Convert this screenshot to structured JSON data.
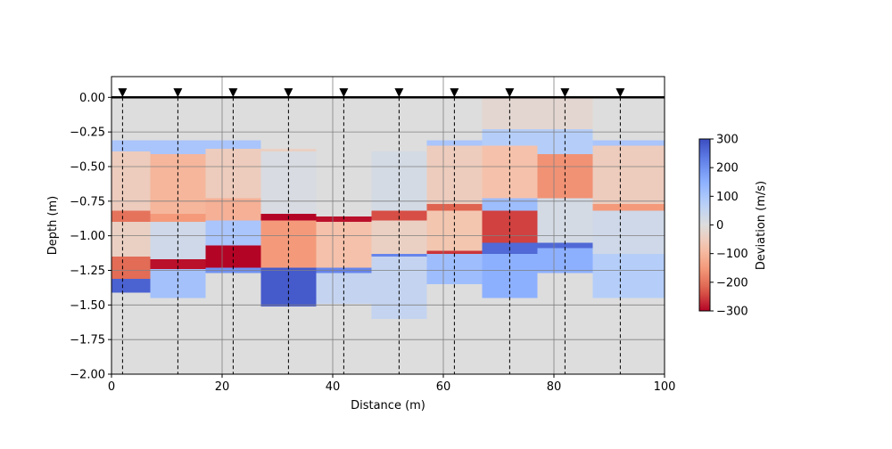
{
  "chart_data": {
    "type": "heatmap",
    "title": "",
    "xlabel": "Distance (m)",
    "ylabel": "Depth (m)",
    "xlim": [
      0,
      100
    ],
    "ylim": [
      -2.0,
      0.15
    ],
    "x_ticks": [
      0,
      20,
      40,
      60,
      80,
      100
    ],
    "x_tick_labels": [
      "0",
      "20",
      "40",
      "60",
      "80",
      "100"
    ],
    "y_ticks": [
      0.0,
      -0.25,
      -0.5,
      -0.75,
      -1.0,
      -1.25,
      -1.5,
      -1.75,
      -2.0
    ],
    "y_tick_labels": [
      "0.00",
      "−0.25",
      "−0.50",
      "−0.75",
      "−1.00",
      "−1.25",
      "−1.50",
      "−1.75",
      "−2.00"
    ],
    "grid": true,
    "colormap": "coolwarm_r",
    "colorbar": {
      "label": "Deviation (m/s)",
      "vmin": -300,
      "vmax": 300,
      "ticks": [
        300,
        200,
        100,
        0,
        -100,
        -200,
        -300
      ],
      "tick_labels": [
        "300",
        "200",
        "100",
        "0",
        "−100",
        "−200",
        "−300"
      ]
    },
    "surface_depth": 0,
    "receiver_positions": [
      2,
      12,
      22,
      32,
      42,
      52,
      62,
      72,
      82,
      92
    ],
    "receiver_marker": "▼",
    "columns": [
      {
        "x0": 0,
        "x1": 7,
        "layers": [
          {
            "top": 0.0,
            "bottom": -0.31,
            "value": 0
          },
          {
            "top": -0.31,
            "bottom": -0.39,
            "value": 100
          },
          {
            "top": -0.39,
            "bottom": -0.82,
            "value": -50
          },
          {
            "top": -0.82,
            "bottom": -0.9,
            "value": -200
          },
          {
            "top": -0.9,
            "bottom": -1.15,
            "value": -40
          },
          {
            "top": -1.15,
            "bottom": -1.31,
            "value": -210
          },
          {
            "top": -1.31,
            "bottom": -1.41,
            "value": 270
          },
          {
            "top": -1.41,
            "bottom": -2.0,
            "value": 0
          }
        ]
      },
      {
        "x0": 7,
        "x1": 17,
        "layers": [
          {
            "top": 0.0,
            "bottom": -0.31,
            "value": 0
          },
          {
            "top": -0.31,
            "bottom": -0.41,
            "value": 100
          },
          {
            "top": -0.41,
            "bottom": -0.84,
            "value": -100
          },
          {
            "top": -0.84,
            "bottom": -0.9,
            "value": -150
          },
          {
            "top": -0.9,
            "bottom": -1.17,
            "value": 30
          },
          {
            "top": -1.17,
            "bottom": -1.24,
            "value": -290
          },
          {
            "top": -1.24,
            "bottom": -1.45,
            "value": 110
          },
          {
            "top": -1.45,
            "bottom": -2.0,
            "value": 0
          }
        ]
      },
      {
        "x0": 17,
        "x1": 27,
        "layers": [
          {
            "top": 0.0,
            "bottom": -0.31,
            "value": 0
          },
          {
            "top": -0.31,
            "bottom": -0.37,
            "value": 100
          },
          {
            "top": -0.37,
            "bottom": -0.73,
            "value": -50
          },
          {
            "top": -0.73,
            "bottom": -0.89,
            "value": -110
          },
          {
            "top": -0.89,
            "bottom": -1.07,
            "value": 100
          },
          {
            "top": -1.07,
            "bottom": -1.23,
            "value": -300
          },
          {
            "top": -1.23,
            "bottom": -1.27,
            "value": 200
          },
          {
            "top": -1.27,
            "bottom": -2.0,
            "value": 0
          }
        ]
      },
      {
        "x0": 27,
        "x1": 37,
        "layers": [
          {
            "top": 0.0,
            "bottom": -0.37,
            "value": 0
          },
          {
            "top": -0.37,
            "bottom": -0.39,
            "value": -40
          },
          {
            "top": -0.39,
            "bottom": -0.84,
            "value": 10
          },
          {
            "top": -0.84,
            "bottom": -0.89,
            "value": -300
          },
          {
            "top": -0.89,
            "bottom": -1.23,
            "value": -150
          },
          {
            "top": -1.23,
            "bottom": -1.51,
            "value": 280
          },
          {
            "top": -1.51,
            "bottom": -2.0,
            "value": 0
          }
        ]
      },
      {
        "x0": 37,
        "x1": 47,
        "layers": [
          {
            "top": 0.0,
            "bottom": -0.86,
            "value": 0
          },
          {
            "top": -0.86,
            "bottom": -0.9,
            "value": -290
          },
          {
            "top": -0.9,
            "bottom": -1.23,
            "value": -80
          },
          {
            "top": -1.23,
            "bottom": -1.27,
            "value": 220
          },
          {
            "top": -1.27,
            "bottom": -1.49,
            "value": 50
          },
          {
            "top": -1.49,
            "bottom": -2.0,
            "value": 0
          }
        ]
      },
      {
        "x0": 47,
        "x1": 57,
        "layers": [
          {
            "top": 0.0,
            "bottom": -0.39,
            "value": 0
          },
          {
            "top": -0.39,
            "bottom": -0.82,
            "value": 20
          },
          {
            "top": -0.82,
            "bottom": -0.89,
            "value": -240
          },
          {
            "top": -0.89,
            "bottom": -1.13,
            "value": -40
          },
          {
            "top": -1.13,
            "bottom": -1.15,
            "value": 220
          },
          {
            "top": -1.15,
            "bottom": -1.6,
            "value": 50
          },
          {
            "top": -1.6,
            "bottom": -2.0,
            "value": 0
          }
        ]
      },
      {
        "x0": 57,
        "x1": 67,
        "layers": [
          {
            "top": 0.0,
            "bottom": -0.31,
            "value": 0
          },
          {
            "top": -0.31,
            "bottom": -0.35,
            "value": 100
          },
          {
            "top": -0.35,
            "bottom": -0.77,
            "value": -50
          },
          {
            "top": -0.77,
            "bottom": -0.82,
            "value": -220
          },
          {
            "top": -0.82,
            "bottom": -1.11,
            "value": -70
          },
          {
            "top": -1.11,
            "bottom": -1.13,
            "value": -260
          },
          {
            "top": -1.13,
            "bottom": -1.35,
            "value": 120
          },
          {
            "top": -1.35,
            "bottom": -2.0,
            "value": 0
          }
        ]
      },
      {
        "x0": 67,
        "x1": 77,
        "layers": [
          {
            "top": 0.0,
            "bottom": -0.23,
            "value": -20
          },
          {
            "top": -0.23,
            "bottom": -0.35,
            "value": 80
          },
          {
            "top": -0.35,
            "bottom": -0.73,
            "value": -80
          },
          {
            "top": -0.73,
            "bottom": -0.82,
            "value": 120
          },
          {
            "top": -0.82,
            "bottom": -1.05,
            "value": -250
          },
          {
            "top": -1.05,
            "bottom": -1.13,
            "value": 260
          },
          {
            "top": -1.13,
            "bottom": -1.45,
            "value": 150
          },
          {
            "top": -1.45,
            "bottom": -2.0,
            "value": 0
          }
        ]
      },
      {
        "x0": 77,
        "x1": 87,
        "layers": [
          {
            "top": 0.0,
            "bottom": -0.23,
            "value": -20
          },
          {
            "top": -0.23,
            "bottom": -0.41,
            "value": 80
          },
          {
            "top": -0.41,
            "bottom": -0.73,
            "value": -160
          },
          {
            "top": -0.73,
            "bottom": -1.05,
            "value": 20
          },
          {
            "top": -1.05,
            "bottom": -1.09,
            "value": 260
          },
          {
            "top": -1.09,
            "bottom": -1.27,
            "value": 150
          },
          {
            "top": -1.27,
            "bottom": -2.0,
            "value": 0
          }
        ]
      },
      {
        "x0": 87,
        "x1": 100,
        "layers": [
          {
            "top": 0.0,
            "bottom": -0.31,
            "value": 0
          },
          {
            "top": -0.31,
            "bottom": -0.35,
            "value": 100
          },
          {
            "top": -0.35,
            "bottom": -0.77,
            "value": -50
          },
          {
            "top": -0.77,
            "bottom": -0.82,
            "value": -150
          },
          {
            "top": -0.82,
            "bottom": -1.13,
            "value": 30
          },
          {
            "top": -1.13,
            "bottom": -1.45,
            "value": 80
          },
          {
            "top": -1.45,
            "bottom": -2.0,
            "value": 0
          }
        ]
      }
    ]
  }
}
